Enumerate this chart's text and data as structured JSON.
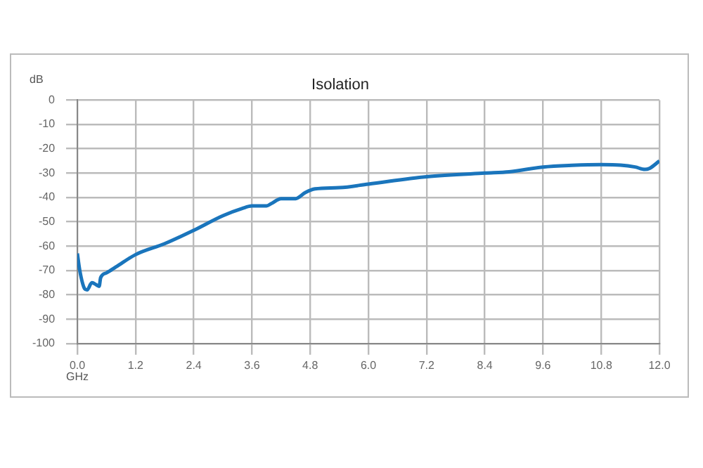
{
  "chart_data": {
    "type": "line",
    "title": "Isolation",
    "xlabel": "GHz",
    "ylabel": "dB",
    "x": [
      0,
      0.05,
      0.15,
      0.2,
      0.3,
      0.4,
      0.45,
      0.48,
      0.6,
      0.8,
      1.2,
      1.8,
      2.4,
      3.0,
      3.4,
      3.6,
      3.9,
      4.0,
      4.2,
      4.5,
      4.7,
      4.9,
      5.4,
      6.0,
      7.2,
      8.4,
      8.9,
      9.6,
      10.2,
      10.8,
      11.2,
      11.5,
      11.7,
      11.8,
      12.0
    ],
    "series": [
      {
        "color": "#1a75bc",
        "values": [
          -63,
          -70,
          -77.5,
          -78,
          -75,
          -76,
          -76.5,
          -73,
          -71,
          -68.5,
          -63.5,
          -59,
          -53.5,
          -47.5,
          -44.5,
          -43.5,
          -43.5,
          -42.5,
          -40.5,
          -40.5,
          -38,
          -36.5,
          -36,
          -34.5,
          -31.5,
          -30,
          -29.5,
          -27.5,
          -26.8,
          -26.5,
          -26.7,
          -27.5,
          -28.5,
          -28,
          -25
        ]
      }
    ],
    "xlim": [
      0,
      12
    ],
    "xticks": [
      {
        "value": 0,
        "label": "0.0"
      },
      {
        "value": 1.2,
        "label": "1.2"
      },
      {
        "value": 2.4,
        "label": "2.4"
      },
      {
        "value": 3.6,
        "label": "3.6"
      },
      {
        "value": 4.8,
        "label": "4.8"
      },
      {
        "value": 6,
        "label": "6.0"
      },
      {
        "value": 7.2,
        "label": "7.2"
      },
      {
        "value": 8.4,
        "label": "8.4"
      },
      {
        "value": 9.6,
        "label": "9.6"
      },
      {
        "value": 10.8,
        "label": "10.8"
      },
      {
        "value": 12,
        "label": "12.0"
      }
    ],
    "ylim": [
      -100,
      0
    ],
    "yticks": [
      0,
      -10,
      -20,
      -30,
      -40,
      -50,
      -60,
      -70,
      -80,
      -90,
      -100
    ],
    "grid": true,
    "legend": false,
    "marker": "none",
    "line_style": "solid"
  }
}
